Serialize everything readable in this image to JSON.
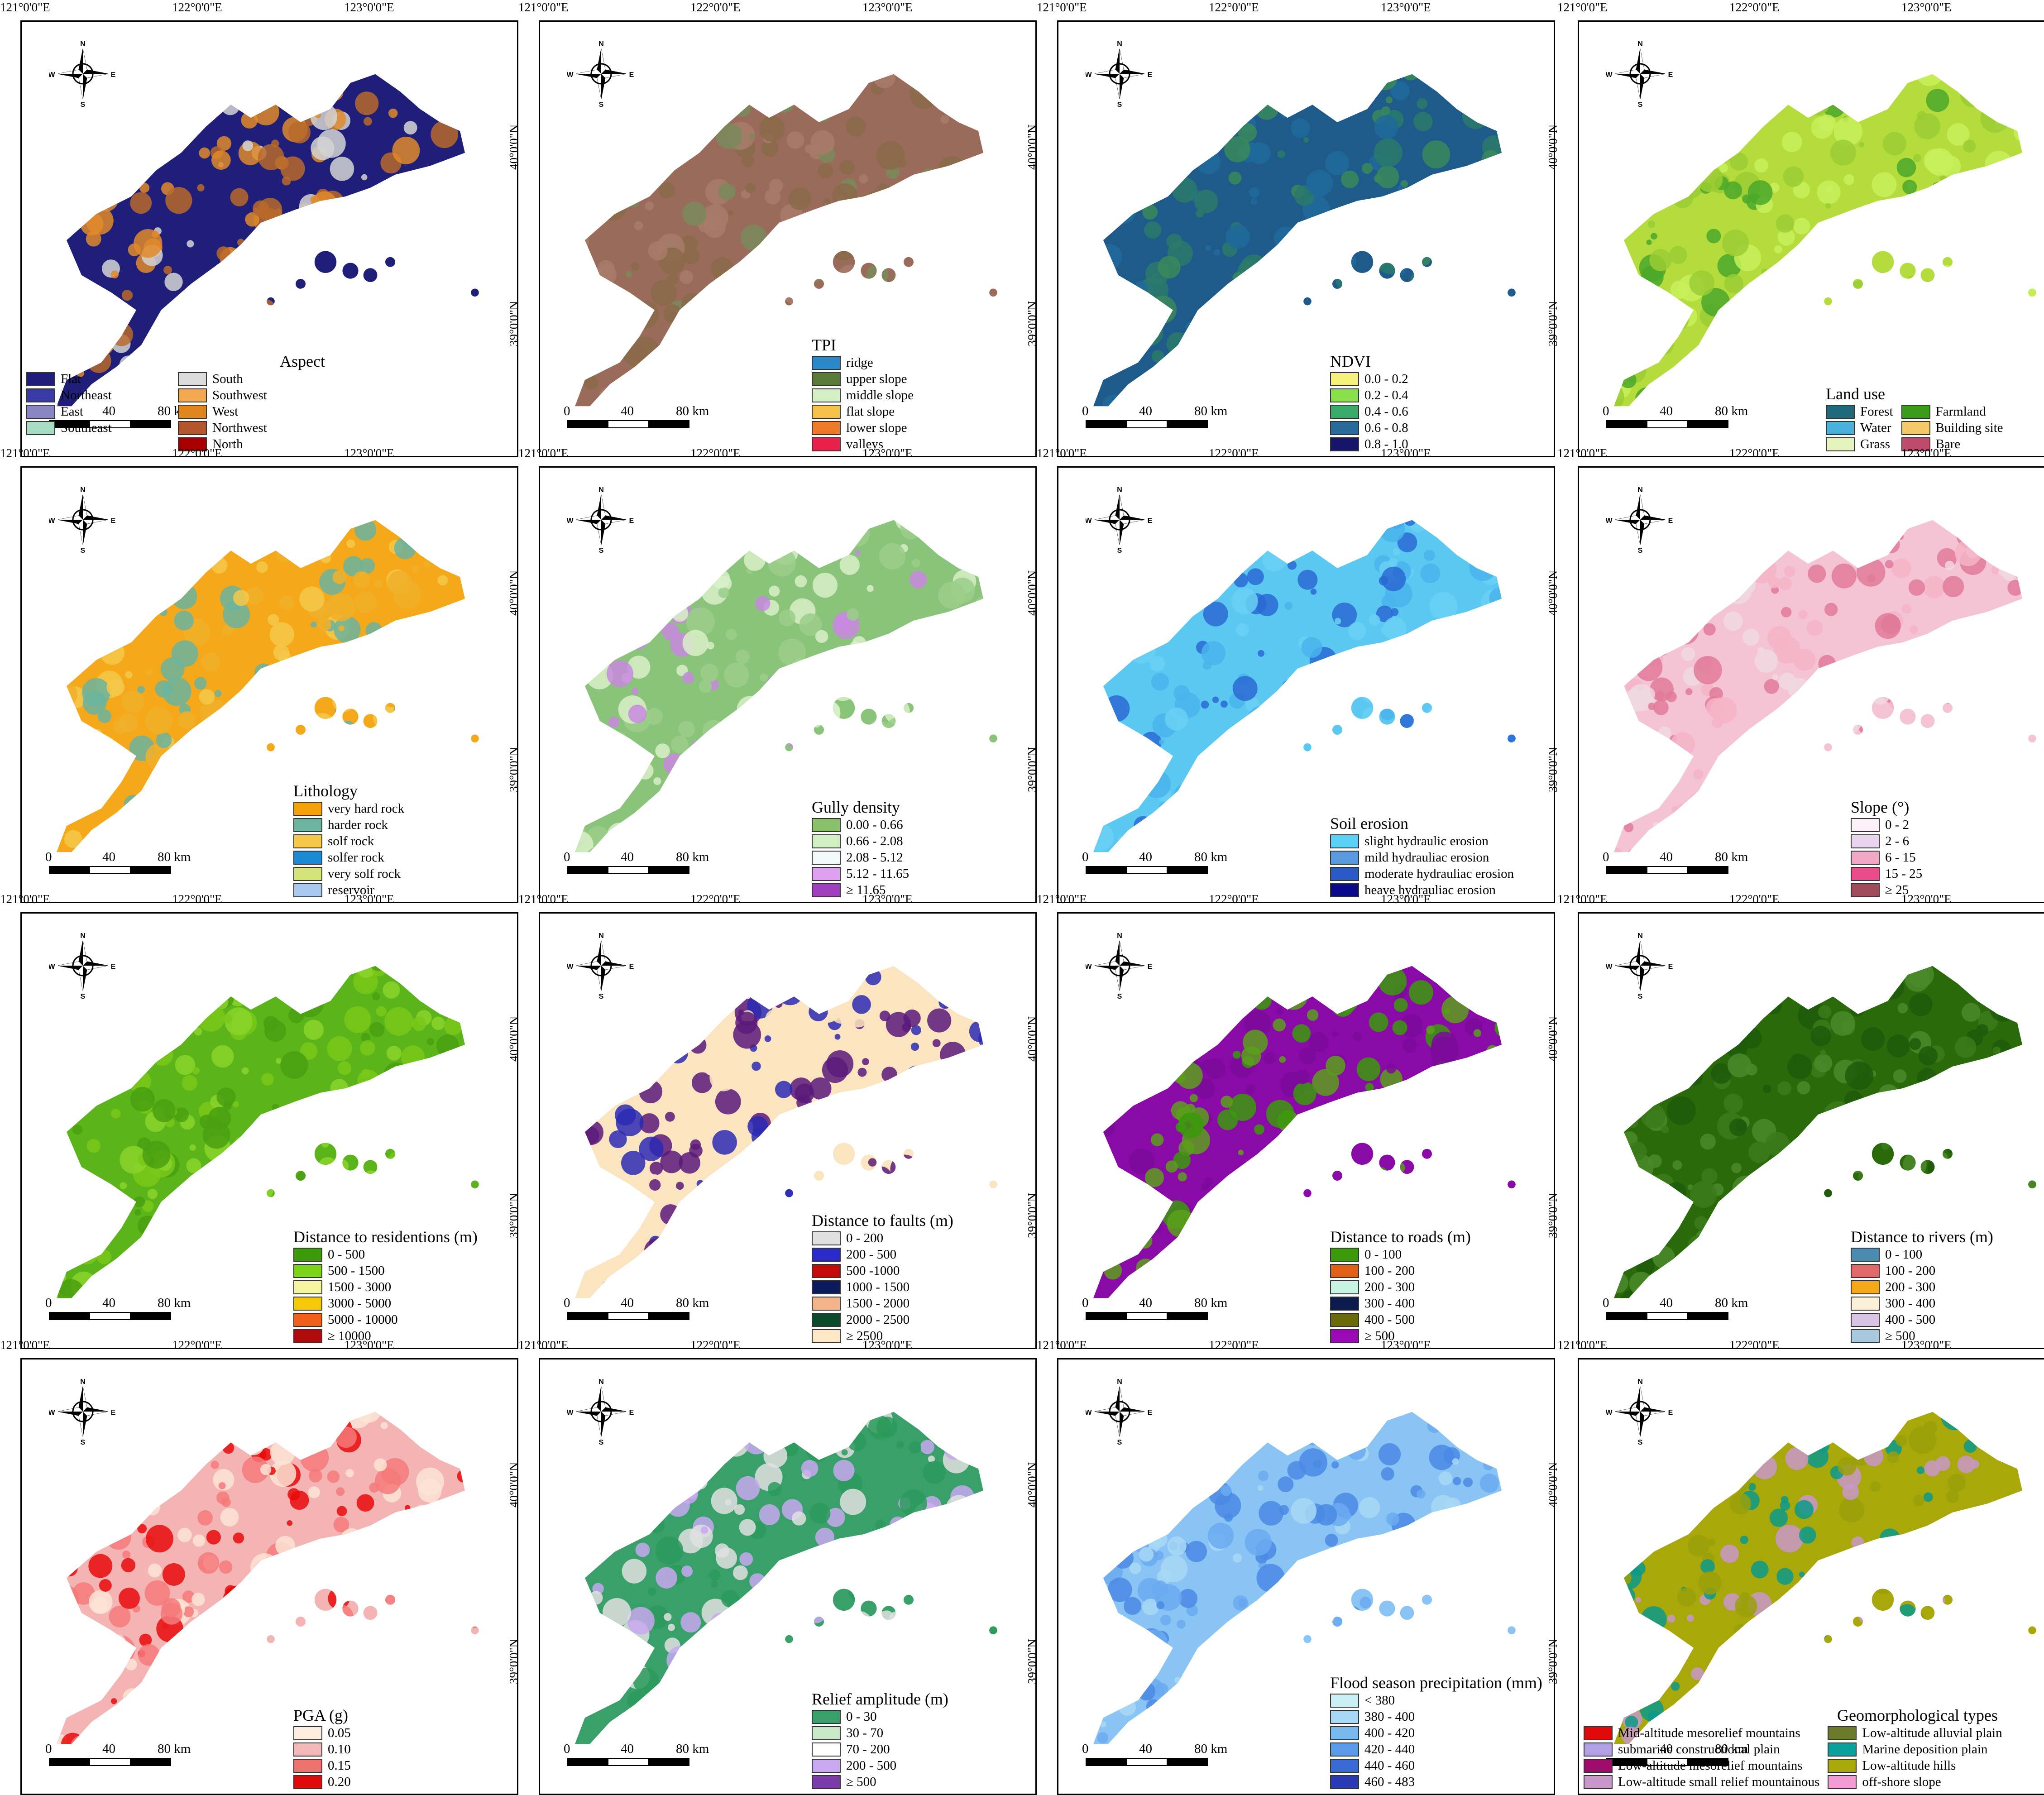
{
  "lon_labels": [
    "121°0'0\"E",
    "122°0'0\"E",
    "123°0'0\"E"
  ],
  "lat_labels": [
    "40°0'0\"N",
    "39°0'0\"N"
  ],
  "compass": {
    "n": "N",
    "s": "S",
    "e": "E",
    "w": "W"
  },
  "scale": {
    "ticks": [
      "0",
      "40",
      "80 km"
    ]
  },
  "panels": [
    {
      "title": "Aspect",
      "cols": 2,
      "colors": [
        "#1f1f7a",
        "#e08a2a",
        "#d4d4d4",
        "#b86a2a"
      ],
      "items": [
        {
          "label": "Flat",
          "color": "#1f1f7a"
        },
        {
          "label": "South",
          "color": "#dcdcdc"
        },
        {
          "label": "Northeast",
          "color": "#3b3ba8"
        },
        {
          "label": "Southwest",
          "color": "#f2a950"
        },
        {
          "label": "East",
          "color": "#8a86c4"
        },
        {
          "label": "West",
          "color": "#e0861e"
        },
        {
          "label": "Southeast",
          "color": "#a8dcc2"
        },
        {
          "label": "Northwest",
          "color": "#b2552a"
        },
        {
          "label": "",
          "color": ""
        },
        {
          "label": "North",
          "color": "#a80000"
        }
      ]
    },
    {
      "title": "TPI",
      "cols": 1,
      "colors": [
        "#9a6a5a",
        "#7a8a5a",
        "#8a6a4a",
        "#a87a6a"
      ],
      "items": [
        {
          "label": "ridge",
          "color": "#2b88c8"
        },
        {
          "label": "upper slope",
          "color": "#5a7a3a"
        },
        {
          "label": "middle slope",
          "color": "#d4f0c4"
        },
        {
          "label": "flat slope",
          "color": "#f5c24a"
        },
        {
          "label": "lower slope",
          "color": "#f07a2a"
        },
        {
          "label": "valleys",
          "color": "#e8204a"
        }
      ]
    },
    {
      "title": "NDVI",
      "cols": 1,
      "colors": [
        "#1e5a8a",
        "#2a7a6a",
        "#1f6a9a",
        "#3a8a5a"
      ],
      "items": [
        {
          "label": "0.0 - 0.2",
          "color": "#f5f07a"
        },
        {
          "label": "0.2 - 0.4",
          "color": "#8ae04a"
        },
        {
          "label": "0.4 - 0.6",
          "color": "#3aaa6a"
        },
        {
          "label": "0.6 - 0.8",
          "color": "#2a6a9a"
        },
        {
          "label": "0.8 - 1.0",
          "color": "#15156a"
        }
      ]
    },
    {
      "title": "Land use",
      "cols": 2,
      "colors": [
        "#b4dc3c",
        "#4aa82a",
        "#c8f05a",
        "#9acd32"
      ],
      "items": [
        {
          "label": "Forest",
          "color": "#1e6a7a"
        },
        {
          "label": "Farmland",
          "color": "#3a9a1a"
        },
        {
          "label": "Water",
          "color": "#4ab0dc"
        },
        {
          "label": "Building site",
          "color": "#f5c86a"
        },
        {
          "label": "Grass",
          "color": "#e4f4bc"
        },
        {
          "label": "Bare",
          "color": "#c04a6a"
        }
      ]
    },
    {
      "title": "Lithology",
      "cols": 1,
      "colors": [
        "#f5a81a",
        "#6ab4a0",
        "#f5c84a",
        "#f0b02a"
      ],
      "items": [
        {
          "label": "very hard rock",
          "color": "#f5a20a"
        },
        {
          "label": "harder rock",
          "color": "#6ab4a0"
        },
        {
          "label": "solf rock",
          "color": "#f5c84a"
        },
        {
          "label": "solfer rock",
          "color": "#1a8ad4"
        },
        {
          "label": "very solf rock",
          "color": "#d4e47a"
        },
        {
          "label": "reservoir",
          "color": "#a8c8f0"
        }
      ]
    },
    {
      "title": "Gully density",
      "cols": 1,
      "colors": [
        "#8ac47a",
        "#d8f0c8",
        "#c888e0",
        "#9ace8a"
      ],
      "items": [
        {
          "label": "0.00 - 0.66",
          "color": "#8ac06a"
        },
        {
          "label": "0.66 - 2.08",
          "color": "#d0f0c4"
        },
        {
          "label": "2.08 - 5.12",
          "color": "#f4fafa"
        },
        {
          "label": "5.12 - 11.65",
          "color": "#e0a0f0"
        },
        {
          "label": "≥ 11.65",
          "color": "#a040c0"
        }
      ]
    },
    {
      "title": "Soil erosion",
      "cols": 1,
      "colors": [
        "#5ac8f0",
        "#4ab4ec",
        "#2a6ad4",
        "#6ad0f4"
      ],
      "items": [
        {
          "label": "slight hydraulic erosion",
          "color": "#5ad0f4"
        },
        {
          "label": "mild hydrauliac erosion",
          "color": "#5a9ae0"
        },
        {
          "label": "moderate hydrauliac erosion",
          "color": "#2a5ac8"
        },
        {
          "label": "heave hydrauliac erosion",
          "color": "#0a0a8a"
        }
      ]
    },
    {
      "title": "Slope (°)",
      "cols": 1,
      "colors": [
        "#f4c4d4",
        "#f0d8e0",
        "#e07a9a",
        "#f4b4c8"
      ],
      "items": [
        {
          "label": "0 - 2",
          "color": "#fdf0f8"
        },
        {
          "label": "2 - 6",
          "color": "#e8d4ec"
        },
        {
          "label": "6 - 15",
          "color": "#f0a8c4"
        },
        {
          "label": "15 - 25",
          "color": "#e84a8a"
        },
        {
          "label": "≥ 25",
          "color": "#a04a5a"
        }
      ]
    },
    {
      "title": "Distance to residentions (m)",
      "cols": 1,
      "colors": [
        "#5ab41a",
        "#7ac81a",
        "#4aa010",
        "#8ad42a"
      ],
      "items": [
        {
          "label": "0 - 500",
          "color": "#3a9a0a"
        },
        {
          "label": "500 - 1500",
          "color": "#7ad41a"
        },
        {
          "label": "1500 - 3000",
          "color": "#f4f4a0"
        },
        {
          "label": "3000 - 5000",
          "color": "#f5c80a"
        },
        {
          "label": "5000 - 10000",
          "color": "#f0601a"
        },
        {
          "label": "≥ 10000",
          "color": "#b00a0a"
        }
      ]
    },
    {
      "title": "Distance to faults (m)",
      "cols": 1,
      "colors": [
        "#fbe4c0",
        "#5a1a7a",
        "#fbe4c0",
        "#2a2ab4"
      ],
      "items": [
        {
          "label": "0 - 200",
          "color": "#e0e0e0"
        },
        {
          "label": "200 - 500",
          "color": "#2a2ac8"
        },
        {
          "label": "500 -1000",
          "color": "#c40a0a"
        },
        {
          "label": "1000 - 1500",
          "color": "#0a1a5a"
        },
        {
          "label": "1500 - 2000",
          "color": "#f4b48a"
        },
        {
          "label": "2000 - 2500",
          "color": "#0a4a2a"
        },
        {
          "label": "≥ 2500",
          "color": "#fce8c4"
        }
      ]
    },
    {
      "title": "Distance to roads (m)",
      "cols": 1,
      "colors": [
        "#8a0aa8",
        "#3a9a0a",
        "#7a0a9a",
        "#5aa01a"
      ],
      "items": [
        {
          "label": "0 - 100",
          "color": "#3a9a0a"
        },
        {
          "label": "100 - 200",
          "color": "#e0601a"
        },
        {
          "label": "200 - 300",
          "color": "#c8f4e4"
        },
        {
          "label": "300 - 400",
          "color": "#0a1a4a"
        },
        {
          "label": "400 - 500",
          "color": "#6a6a0a"
        },
        {
          "label": "≥ 500",
          "color": "#9a0ab4"
        }
      ]
    },
    {
      "title": "Distance to rivers (m)",
      "cols": 1,
      "colors": [
        "#2a6a0a",
        "#3a7a1a",
        "#1f5a0a",
        "#4a8a2a"
      ],
      "items": [
        {
          "label": "0 - 100",
          "color": "#4a8ab0"
        },
        {
          "label": "100 - 200",
          "color": "#e06a6a"
        },
        {
          "label": "200 - 300",
          "color": "#f5a81a"
        },
        {
          "label": "300 - 400",
          "color": "#fcf0d8"
        },
        {
          "label": "400 - 500",
          "color": "#d8c4e4"
        },
        {
          "label": "≥ 500",
          "color": "#a8c8e0"
        }
      ]
    },
    {
      "title": "PGA (g)",
      "cols": 1,
      "colors": [
        "#f4b4b4",
        "#f47a7a",
        "#fbe4d4",
        "#e80a0a"
      ],
      "items": [
        {
          "label": "0.05",
          "color": "#fdeee0"
        },
        {
          "label": "0.10",
          "color": "#f4b8b8"
        },
        {
          "label": "0.15",
          "color": "#f07070"
        },
        {
          "label": "0.20",
          "color": "#e00a0a"
        }
      ]
    },
    {
      "title": "Relief amplitude (m)",
      "cols": 1,
      "colors": [
        "#3aa06a",
        "#2a9a5a",
        "#e0e0e0",
        "#c8a8f0"
      ],
      "items": [
        {
          "label": "0 - 30",
          "color": "#3aa06a"
        },
        {
          "label": "30 - 70",
          "color": "#c8e8c8"
        },
        {
          "label": "70 - 200",
          "color": "#ffffff"
        },
        {
          "label": "200 - 500",
          "color": "#c8a8f0"
        },
        {
          "label": "≥ 500",
          "color": "#7a3aaa"
        }
      ]
    },
    {
      "title": "Flood season precipitation (mm)",
      "cols": 1,
      "colors": [
        "#8ac4f4",
        "#6aaaf0",
        "#4a8ae4",
        "#a8d8f4"
      ],
      "items": [
        {
          "label": "< 380",
          "color": "#c8f0f4"
        },
        {
          "label": "380 - 400",
          "color": "#a8d8f4"
        },
        {
          "label": "400 - 420",
          "color": "#7ab8f0"
        },
        {
          "label": "420 - 440",
          "color": "#5a9ae8"
        },
        {
          "label": "440 - 460",
          "color": "#3a6ad8"
        },
        {
          "label": "460 - 483",
          "color": "#2a3ab4"
        }
      ]
    },
    {
      "title": "Geomorphological types",
      "cols": 2,
      "colors": [
        "#a8a80a",
        "#c898c8",
        "#9aa00a",
        "#0a9a8a"
      ],
      "items": [
        {
          "label": "Mid-altitude mesorelief mountains",
          "color": "#e00a0a"
        },
        {
          "label": "Low-altitude alluvial plain",
          "color": "#6a7a2a"
        },
        {
          "label": "submarine constructional plain",
          "color": "#b4a0e4"
        },
        {
          "label": "Marine deposition plain",
          "color": "#0aa09a"
        },
        {
          "label": "Low-altitude mesorelief mountains",
          "color": "#a00a6a"
        },
        {
          "label": "Low-altitude hills",
          "color": "#a8a80a"
        },
        {
          "label": "Low-altitude small  relief mountainous",
          "color": "#c898c8"
        },
        {
          "label": "off-shore slope",
          "color": "#f49ad4"
        }
      ]
    }
  ]
}
